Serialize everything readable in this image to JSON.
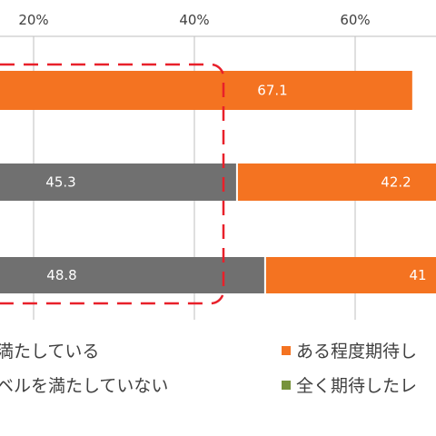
{
  "chart_data": {
    "type": "bar",
    "orientation": "horizontal",
    "stacked": true,
    "xlim": [
      0,
      100
    ],
    "tick_labels": [
      "20%",
      "40%",
      "60%"
    ],
    "grid": true,
    "series": [
      {
        "values": [
          null,
          45.3,
          48.8
        ],
        "color": "#707070"
      },
      {
        "values": [
          67.1,
          42.2,
          41
        ],
        "color": "#f47321"
      }
    ],
    "data_labels": [
      {
        "series": 0,
        "row": 1,
        "text": "45.3"
      },
      {
        "series": 0,
        "row": 2,
        "text": "48.8"
      },
      {
        "series": 1,
        "row": 0,
        "text": "67.1"
      },
      {
        "series": 1,
        "row": 1,
        "text": "42.2"
      },
      {
        "series": 1,
        "row": 2,
        "text": "41"
      }
    ],
    "legend_placement": "bottom",
    "highlight_box_color": "#e8202a"
  },
  "legend": {
    "items": [
      {
        "label": "満たしている",
        "color": "#707070"
      },
      {
        "label": "ある程度期待し",
        "color": "#f47321"
      },
      {
        "label": "ベルを満たしていない",
        "color": "#707070"
      },
      {
        "label": "全く期待したレ",
        "color": "#77933c"
      }
    ]
  }
}
